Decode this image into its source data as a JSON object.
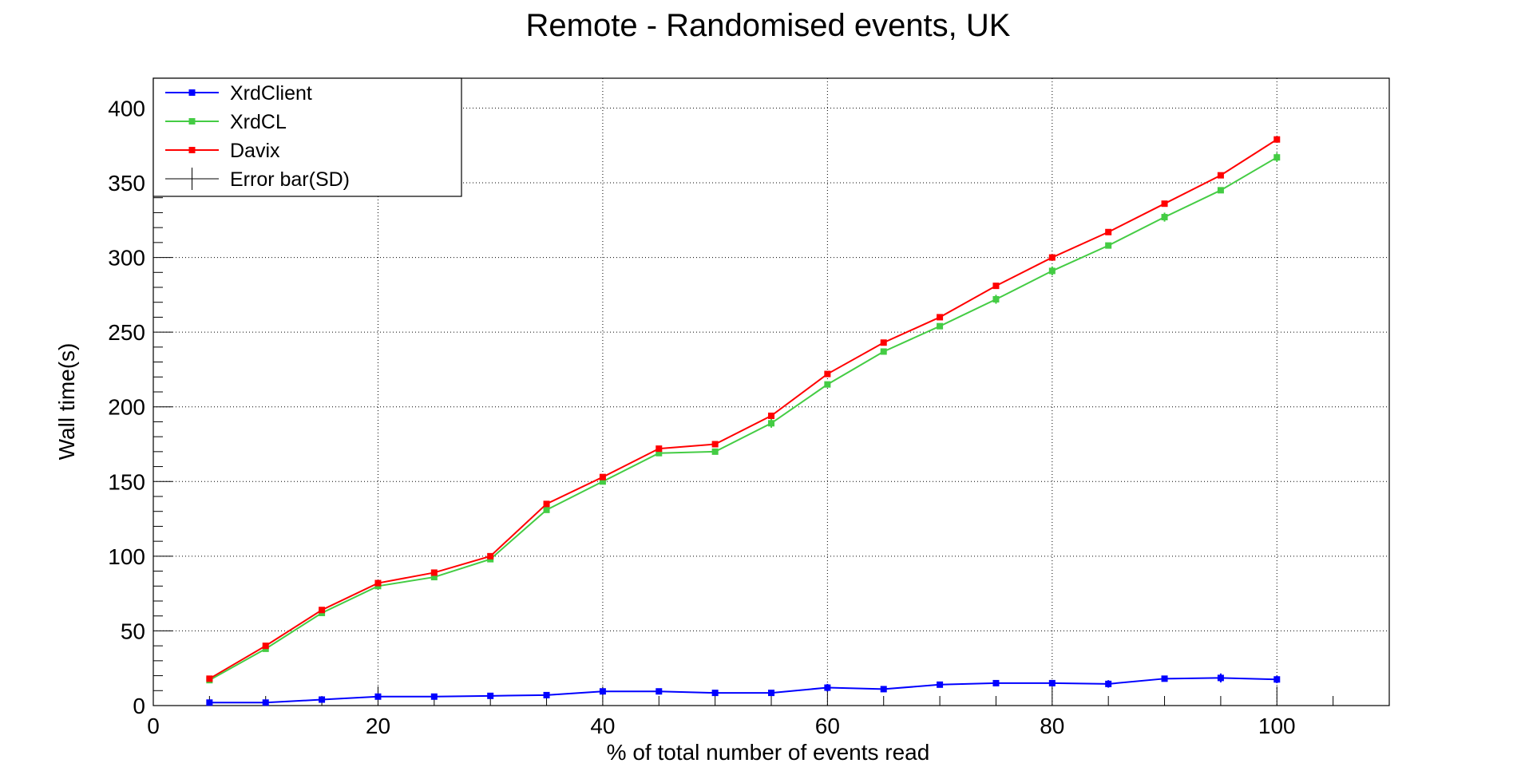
{
  "chart_data": {
    "type": "line",
    "title": "Remote - Randomised events, UK",
    "xlabel": "% of total number of events read",
    "ylabel": "Wall time(s)",
    "xlim": [
      0,
      110
    ],
    "ylim": [
      0,
      420
    ],
    "x_ticks": [
      0,
      20,
      40,
      60,
      80,
      100
    ],
    "y_ticks": [
      0,
      50,
      100,
      150,
      200,
      250,
      300,
      350,
      400
    ],
    "grid": true,
    "legend_position": "top-left",
    "x": [
      5,
      10,
      15,
      20,
      25,
      30,
      35,
      40,
      45,
      50,
      55,
      60,
      65,
      70,
      75,
      80,
      85,
      90,
      95,
      100
    ],
    "series": [
      {
        "name": "XrdClient",
        "color": "#0000ff",
        "values": [
          2,
          2,
          4,
          6,
          6,
          6.5,
          7,
          9.5,
          9.5,
          8.5,
          8.5,
          12,
          11,
          14,
          15,
          15,
          14.5,
          18,
          18.5,
          17.5
        ],
        "errors": [
          0.5,
          0.5,
          0.5,
          0.5,
          0.5,
          0.5,
          0.5,
          0.7,
          0.7,
          0.7,
          0.7,
          2.5,
          1,
          1.5,
          1,
          1.5,
          2.5,
          1,
          3,
          2.5
        ]
      },
      {
        "name": "XrdCL",
        "color": "#44cc44",
        "values": [
          17,
          38,
          62,
          80,
          86,
          98,
          131,
          150,
          169,
          170,
          189,
          215,
          237,
          254,
          272,
          291,
          308,
          327,
          345,
          367
        ],
        "errors": [
          1,
          1,
          1,
          1,
          1,
          1,
          1.5,
          1,
          1,
          1,
          3,
          1.5,
          1,
          1,
          3,
          3,
          1,
          3,
          1,
          3
        ]
      },
      {
        "name": "Davix",
        "color": "#ff0000",
        "values": [
          18,
          40,
          64,
          82,
          89,
          100,
          135,
          153,
          172,
          175,
          194,
          222,
          243,
          260,
          281,
          300,
          317,
          336,
          355,
          379
        ],
        "errors": [
          0.5,
          0.5,
          0.5,
          0.5,
          0.5,
          0.5,
          0.5,
          0.5,
          0.5,
          0.5,
          0.5,
          0.5,
          0.5,
          0.5,
          0.5,
          0.5,
          0.5,
          0.5,
          0.5,
          0.5
        ]
      }
    ],
    "legend_entries": [
      {
        "label": "XrdClient",
        "color": "#0000ff",
        "marker": "square"
      },
      {
        "label": "XrdCL",
        "color": "#44cc44",
        "marker": "square"
      },
      {
        "label": "Davix",
        "color": "#ff0000",
        "marker": "square"
      },
      {
        "label": "Error bar(SD)",
        "color": "#000000",
        "marker": "errorbar"
      }
    ]
  }
}
